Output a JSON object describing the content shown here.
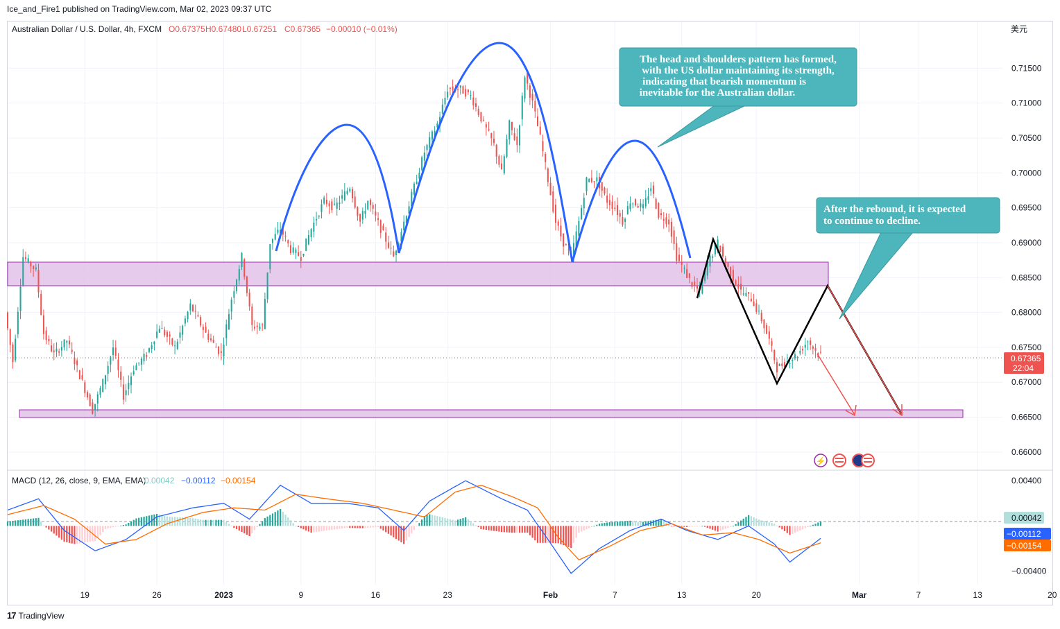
{
  "header": {
    "publish_line": "Ice_and_Fire1 published on TradingView.com, Mar 02, 2023 09:37 UTC"
  },
  "legend": {
    "symbol": "Australian Dollar / U.S. Dollar, 4h, FXCM",
    "open": "O0.67375",
    "high": "H0.67480",
    "low": "L0.67251",
    "close": "C0.67365",
    "change": "−0.00010 (−0.01%)",
    "currency": "美元"
  },
  "macd_legend": {
    "label": "MACD (12, 26, close, 9, EMA, EMA)",
    "hist": "0.00042",
    "macd": "−0.00112",
    "signal": "−0.00154"
  },
  "annotations": {
    "callout_1": [
      "The head and shoulders pattern has formed,",
      "with the US dollar maintaining its strength,",
      "indicating that bearish momentum is",
      "inevitable for the Australian dollar."
    ],
    "callout_2": [
      "After the rebound, it is expected",
      "to continue to decline."
    ]
  },
  "price_tag": {
    "price": "0.67365",
    "countdown": "22:04"
  },
  "macd_tags": {
    "hist": "0.00042",
    "macd": "−0.00112",
    "signal": "−0.00154"
  },
  "footer": {
    "brand": "TradingView"
  },
  "colors": {
    "up": "#26a69a",
    "down": "#ef5350",
    "head_shoulders": "#2962ff",
    "zone_fill": "#e1bee7",
    "zone_stroke": "#9c27b0",
    "callout": "#4db6bc",
    "macd_line": "#2962ff",
    "signal_line": "#ff6d00",
    "arrow": "#ef5350"
  },
  "chart_data": {
    "type": "candlestick",
    "symbol": "AUDUSD",
    "timeframe": "4h",
    "y_axis_ticks": [
      "0.71500",
      "0.71000",
      "0.70500",
      "0.70000",
      "0.69500",
      "0.69000",
      "0.68500",
      "0.68000",
      "0.67500",
      "0.67000",
      "0.66500",
      "0.66000"
    ],
    "macd_axis_ticks": [
      "0.00400",
      "−0.00400"
    ],
    "x_axis_ticks": [
      "19",
      "26",
      "2023",
      "9",
      "16",
      "23",
      "Feb",
      "7",
      "13",
      "20",
      "Mar",
      "7",
      "13",
      "20"
    ],
    "ylim": [
      0.6585,
      0.7198
    ],
    "macd_ylim": [
      -0.0047,
      0.0045
    ],
    "candles": {
      "waypoints": [
        [
          0,
          0.68
        ],
        [
          3,
          0.673
        ],
        [
          7,
          0.688
        ],
        [
          12,
          0.686
        ],
        [
          15,
          0.677
        ],
        [
          19,
          0.674
        ],
        [
          24,
          0.676
        ],
        [
          30,
          0.67
        ],
        [
          34,
          0.666
        ],
        [
          38,
          0.67
        ],
        [
          42,
          0.675
        ],
        [
          46,
          0.668
        ],
        [
          50,
          0.672
        ],
        [
          55,
          0.674
        ],
        [
          60,
          0.678
        ],
        [
          66,
          0.675
        ],
        [
          72,
          0.681
        ],
        [
          78,
          0.677
        ],
        [
          84,
          0.674
        ],
        [
          88,
          0.682
        ],
        [
          92,
          0.688
        ],
        [
          96,
          0.678
        ],
        [
          100,
          0.678
        ],
        [
          103,
          0.69
        ],
        [
          107,
          0.692
        ],
        [
          111,
          0.689
        ],
        [
          115,
          0.688
        ],
        [
          119,
          0.692
        ],
        [
          124,
          0.696
        ],
        [
          128,
          0.695
        ],
        [
          134,
          0.698
        ],
        [
          138,
          0.693
        ],
        [
          141,
          0.696
        ],
        [
          146,
          0.692
        ],
        [
          151,
          0.688
        ],
        [
          155,
          0.693
        ],
        [
          159,
          0.698
        ],
        [
          163,
          0.703
        ],
        [
          168,
          0.707
        ],
        [
          172,
          0.712
        ],
        [
          177,
          0.712
        ],
        [
          181,
          0.711
        ],
        [
          186,
          0.707
        ],
        [
          190,
          0.704
        ],
        [
          193,
          0.7
        ],
        [
          196,
          0.707
        ],
        [
          199,
          0.704
        ],
        [
          202,
          0.714
        ],
        [
          205,
          0.71
        ],
        [
          208,
          0.705
        ],
        [
          211,
          0.699
        ],
        [
          214,
          0.693
        ],
        [
          217,
          0.69
        ],
        [
          220,
          0.688
        ],
        [
          223,
          0.693
        ],
        [
          226,
          0.699
        ],
        [
          230,
          0.699
        ],
        [
          234,
          0.696
        ],
        [
          237,
          0.695
        ],
        [
          240,
          0.693
        ],
        [
          243,
          0.696
        ],
        [
          248,
          0.695
        ],
        [
          251,
          0.698
        ],
        [
          254,
          0.694
        ],
        [
          258,
          0.693
        ],
        [
          261,
          0.688
        ],
        [
          264,
          0.686
        ],
        [
          267,
          0.684
        ],
        [
          270,
          0.683
        ],
        [
          273,
          0.687
        ],
        [
          277,
          0.69
        ],
        [
          280,
          0.687
        ],
        [
          283,
          0.685
        ],
        [
          286,
          0.683
        ],
        [
          290,
          0.682
        ],
        [
          294,
          0.679
        ],
        [
          297,
          0.676
        ],
        [
          300,
          0.672
        ],
        [
          304,
          0.673
        ],
        [
          308,
          0.674
        ],
        [
          312,
          0.676
        ],
        [
          316,
          0.674
        ]
      ]
    },
    "macd": {
      "waypoints": [
        [
          0,
          0.0014
        ],
        [
          12,
          0.0024
        ],
        [
          22,
          -0.0004
        ],
        [
          34,
          -0.0022
        ],
        [
          46,
          -0.0012
        ],
        [
          58,
          0.0008
        ],
        [
          72,
          0.0016
        ],
        [
          84,
          0.002
        ],
        [
          94,
          0.0006
        ],
        [
          106,
          0.0036
        ],
        [
          118,
          0.002
        ],
        [
          132,
          0.002
        ],
        [
          144,
          0.0016
        ],
        [
          154,
          -0.0004
        ],
        [
          164,
          0.0022
        ],
        [
          178,
          0.004
        ],
        [
          192,
          0.0024
        ],
        [
          202,
          0.0014
        ],
        [
          210,
          -0.0012
        ],
        [
          219,
          -0.0042
        ],
        [
          230,
          -0.002
        ],
        [
          242,
          -0.0004
        ],
        [
          254,
          0.0006
        ],
        [
          264,
          -0.0004
        ],
        [
          276,
          -0.0012
        ],
        [
          288,
          0.0
        ],
        [
          298,
          -0.0016
        ],
        [
          304,
          -0.0032
        ],
        [
          316,
          -0.0011
        ]
      ],
      "signal_waypoints": [
        [
          0,
          0.001
        ],
        [
          14,
          0.0018
        ],
        [
          26,
          0.0006
        ],
        [
          38,
          -0.0016
        ],
        [
          50,
          -0.0012
        ],
        [
          62,
          0.0002
        ],
        [
          76,
          0.0012
        ],
        [
          88,
          0.0016
        ],
        [
          100,
          0.0014
        ],
        [
          112,
          0.0028
        ],
        [
          124,
          0.0024
        ],
        [
          138,
          0.002
        ],
        [
          150,
          0.0014
        ],
        [
          162,
          0.0008
        ],
        [
          174,
          0.003
        ],
        [
          184,
          0.0036
        ],
        [
          196,
          0.0026
        ],
        [
          206,
          0.0016
        ],
        [
          214,
          -0.001
        ],
        [
          222,
          -0.003
        ],
        [
          234,
          -0.0018
        ],
        [
          246,
          -0.0004
        ],
        [
          258,
          0.0002
        ],
        [
          270,
          -0.0008
        ],
        [
          282,
          -0.0006
        ],
        [
          292,
          -0.0012
        ],
        [
          304,
          -0.0024
        ],
        [
          316,
          -0.0015
        ]
      ]
    }
  }
}
